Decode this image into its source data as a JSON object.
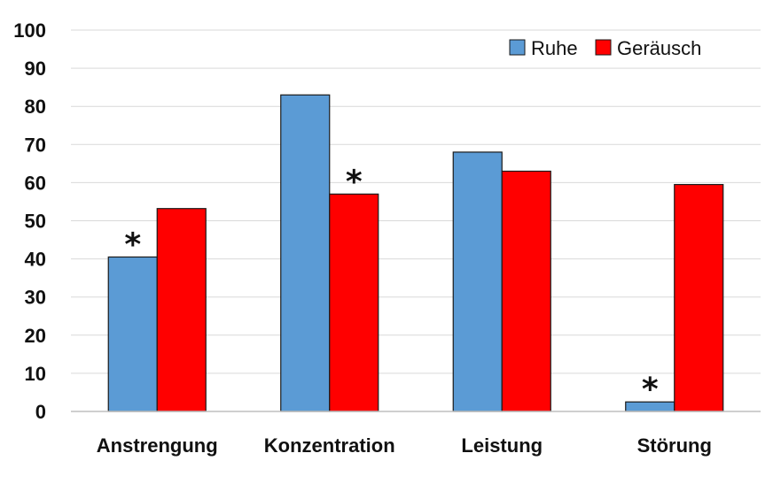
{
  "chart_data": {
    "type": "bar",
    "categories": [
      "Anstrengung",
      "Konzentration",
      "Leistung",
      "Störung"
    ],
    "series": [
      {
        "name": "Ruhe",
        "color": "#5b9bd5",
        "values": [
          40.5,
          83,
          68,
          2.5
        ]
      },
      {
        "name": "Geräusch",
        "color": "#ff0000",
        "values": [
          53.2,
          57,
          63,
          59.5
        ]
      }
    ],
    "ylim": [
      0,
      100
    ],
    "yticks": [
      0,
      10,
      20,
      30,
      40,
      50,
      60,
      70,
      80,
      90,
      100
    ],
    "grid": true,
    "legend_position": "top-right",
    "annotations": [
      {
        "category": "Anstrengung",
        "series": "Ruhe",
        "text": "*"
      },
      {
        "category": "Konzentration",
        "series": "Geräusch",
        "text": "*"
      },
      {
        "category": "Störung",
        "series": "Ruhe",
        "text": "*"
      }
    ]
  }
}
